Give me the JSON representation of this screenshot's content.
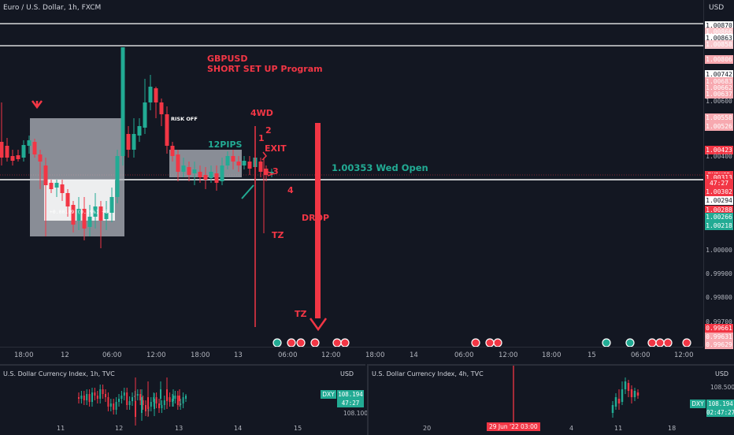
{
  "main": {
    "symbol_title": "Euro / U.S. Dollar, 1h, FXCM",
    "axis_currency": "USD",
    "price_labels": [
      {
        "text": "1.00870",
        "style": "white"
      },
      {
        "text": "1.00866",
        "style": "lpink"
      },
      {
        "text": "1.00863",
        "style": "white"
      },
      {
        "text": "1.00858",
        "style": "lpink"
      },
      {
        "text": "1.00806",
        "style": "pink"
      },
      {
        "text": "1.00742",
        "style": "white"
      },
      {
        "text": "1.00683",
        "style": "pink"
      },
      {
        "text": "1.00662",
        "style": "pink"
      },
      {
        "text": "1.00637",
        "style": "pink"
      },
      {
        "text": "1.00600",
        "style": "plain"
      },
      {
        "text": "1.00558",
        "style": "pink"
      },
      {
        "text": "1.00526",
        "style": "pink"
      },
      {
        "text": "1.00423",
        "style": "red"
      },
      {
        "text": "1.00400",
        "style": "plain"
      },
      {
        "text": "EURUSD",
        "style": "red"
      },
      {
        "text": "1.00313",
        "style": "red"
      },
      {
        "text": "47:27",
        "style": "red"
      },
      {
        "text": "1.00302",
        "style": "red"
      },
      {
        "text": "1.00294",
        "style": "white"
      },
      {
        "text": "1.00288",
        "style": "red"
      },
      {
        "text": "1.00266",
        "style": "green"
      },
      {
        "text": "1.00218",
        "style": "green"
      },
      {
        "text": "1.00000",
        "style": "plain"
      },
      {
        "text": "0.99900",
        "style": "plain"
      },
      {
        "text": "0.99800",
        "style": "plain"
      },
      {
        "text": "0.99700",
        "style": "plain"
      },
      {
        "text": "0.99661",
        "style": "red"
      },
      {
        "text": "0.99631",
        "style": "pink"
      },
      {
        "text": "0.99629",
        "style": "pink"
      }
    ],
    "time_labels": [
      "18:00",
      "12",
      "06:00",
      "12:00",
      "18:00",
      "13",
      "06:00",
      "12:00",
      "18:00",
      "14",
      "06:00",
      "12:00",
      "18:00",
      "15",
      "06:00",
      "12:00"
    ],
    "annotations": {
      "title_line1": "GBPUSD",
      "title_line2": "SHORT SET UP Program",
      "fourwd": "4WD",
      "num2": "2",
      "num1": "1",
      "exit": "EXIT",
      "num3": "3",
      "num4": "4",
      "twelve_pips": "12PIPS",
      "wed_open": "1.00353 Wed Open",
      "drop": "DROP",
      "tz1": "TZ",
      "tz2": "TZ",
      "risk_off": "RISK OFF",
      "box_stats": "+0.00189 (0.19%) +8."
    },
    "colors": {
      "bull": "#22ab94",
      "bear": "#f23645",
      "bg": "#131722"
    }
  },
  "sub1": {
    "title": "U.S. Dollar Currency Index, 1h, TVC",
    "currency": "USD",
    "dxy_tag": "DXY",
    "dxy_value": "108.194",
    "dxy_timer": "47:27",
    "price_tick": "108.100",
    "time_labels": [
      "11",
      "12",
      "13",
      "14",
      "15"
    ]
  },
  "sub2": {
    "title": "U.S. Dollar Currency Index, 4h, TVC",
    "currency": "USD",
    "dxy_tag": "DXY",
    "dxy_value": "108.194",
    "dxy_timer": "02:47:27",
    "price_tick": "108.500",
    "time_labels": [
      "20",
      "29 Jun '22  03:00",
      "4",
      "11",
      "18"
    ]
  }
}
